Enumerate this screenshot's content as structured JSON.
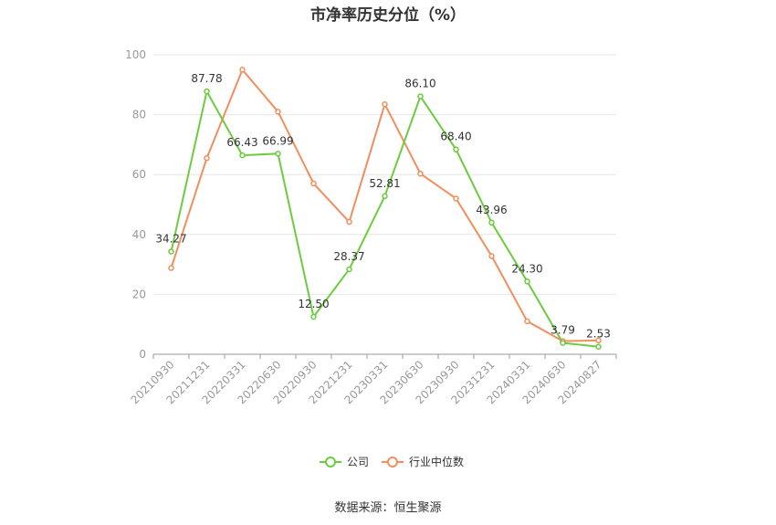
{
  "chart_data": {
    "type": "line",
    "title": "市净率历史分位（%）",
    "categories": [
      "20210930",
      "20211231",
      "20220331",
      "20220630",
      "20220930",
      "20221231",
      "20230331",
      "20230630",
      "20230930",
      "20231231",
      "20240331",
      "20240630",
      "20240827"
    ],
    "ylim": [
      0,
      100
    ],
    "yticks": [
      0,
      20,
      40,
      60,
      80,
      100
    ],
    "grid": true,
    "legend_position": "bottom",
    "series": [
      {
        "name": "公司",
        "color": "#6ccb3e",
        "values": [
          34.27,
          87.78,
          66.43,
          66.99,
          12.5,
          28.37,
          52.81,
          86.1,
          68.4,
          43.96,
          24.3,
          3.79,
          2.53
        ],
        "labels": [
          "34.27",
          "87.78",
          "66.43",
          "66.99",
          "12.50",
          "28.37",
          "52.81",
          "86.10",
          "68.40",
          "43.96",
          "24.30",
          "3.79",
          "2.53"
        ]
      },
      {
        "name": "行业中位数",
        "color": "#f28e5e",
        "values": [
          28.8,
          65.5,
          95.0,
          81.0,
          57.0,
          44.2,
          83.5,
          60.3,
          52.0,
          32.8,
          11.0,
          4.4,
          4.6
        ]
      }
    ],
    "source": "数据来源：恒生聚源"
  }
}
